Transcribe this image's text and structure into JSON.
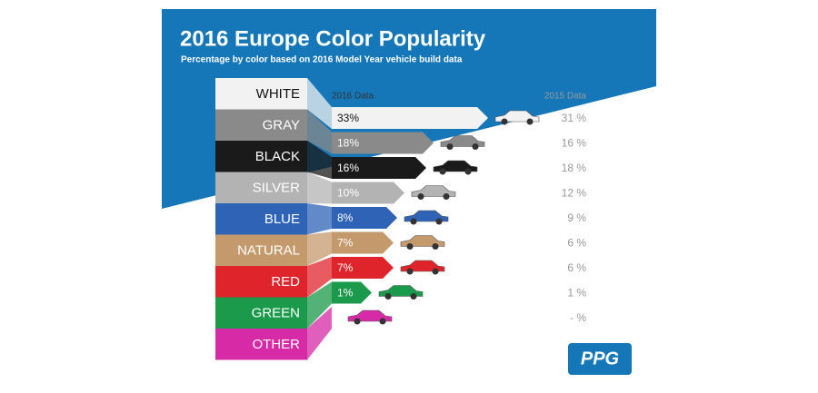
{
  "chart_data": {
    "type": "bar",
    "title": "2016 Europe Color Popularity",
    "subtitle": "Percentage by color based on 2016 Model Year vehicle build data",
    "categories": [
      "WHITE",
      "GRAY",
      "BLACK",
      "SILVER",
      "BLUE",
      "NATURAL",
      "RED",
      "GREEN",
      "OTHER"
    ],
    "colors": [
      "#f2f2f2",
      "#8a8a8a",
      "#1a1a1a",
      "#b3b3b3",
      "#2f63b6",
      "#c49a6c",
      "#e0242b",
      "#1a9a4a",
      "#d62aa6"
    ],
    "series": [
      {
        "name": "2016 Data",
        "values": [
          33,
          18,
          16,
          10,
          8,
          7,
          7,
          1,
          null
        ],
        "value_labels": [
          "33%",
          "18%",
          "16%",
          "10%",
          "8%",
          "7%",
          "7%",
          "1%",
          "-"
        ]
      },
      {
        "name": "2015 Data",
        "values": [
          31,
          16,
          18,
          12,
          9,
          6,
          6,
          1,
          null
        ],
        "value_labels": [
          "31 %",
          "16 %",
          "18 %",
          "12 %",
          "9 %",
          "6 %",
          "6 %",
          "1 %",
          "- %"
        ]
      }
    ],
    "logo": "PPG"
  }
}
